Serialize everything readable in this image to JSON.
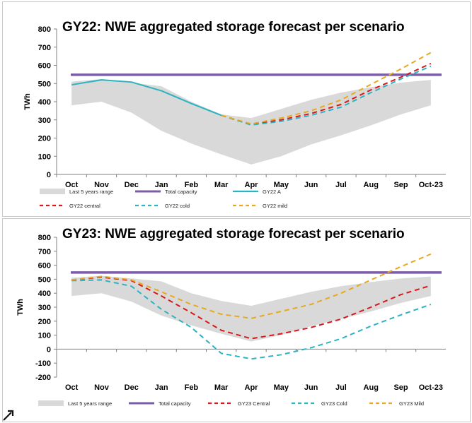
{
  "chart_data": [
    {
      "type": "line",
      "title": "GY22: NWE aggregated storage forecast per scenario",
      "ylabel": "TWh",
      "xlabel": "",
      "ylim": [
        0,
        800
      ],
      "yticks": [
        0,
        100,
        200,
        300,
        400,
        500,
        600,
        700,
        800
      ],
      "categories": [
        "Oct",
        "Nov",
        "Dec",
        "Jan",
        "Feb",
        "Mar",
        "Apr",
        "May",
        "Jun",
        "Jul",
        "Aug",
        "Sep",
        "Oct-23"
      ],
      "grid": false,
      "legend_position": "bottom",
      "band": {
        "name": "Last 5 years range",
        "color": "#d9d9d9",
        "upper": [
          510,
          525,
          505,
          485,
          400,
          330,
          310,
          360,
          410,
          450,
          480,
          505,
          520
        ],
        "lower": [
          380,
          400,
          340,
          240,
          170,
          110,
          55,
          100,
          165,
          215,
          270,
          330,
          380
        ]
      },
      "series": [
        {
          "name": "Total capacity",
          "color": "#7b5ea7",
          "style": "solid",
          "width": 3.5,
          "values": [
            548,
            548,
            548,
            548,
            548,
            548,
            548,
            548,
            548,
            548,
            548,
            548,
            548
          ]
        },
        {
          "name": "GY22 A",
          "color": "#2bb3c0",
          "style": "solid",
          "width": 2,
          "values": [
            493,
            520,
            508,
            460,
            390,
            325,
            null,
            null,
            null,
            null,
            null,
            null,
            null
          ]
        },
        {
          "name": "GY22 central",
          "color": "#d9161a",
          "style": "dashed",
          "width": 2,
          "values": [
            null,
            null,
            null,
            null,
            null,
            325,
            275,
            300,
            335,
            385,
            465,
            535,
            610
          ]
        },
        {
          "name": "GY22 cold",
          "color": "#2bb3c0",
          "style": "dashed",
          "width": 2,
          "values": [
            null,
            null,
            null,
            null,
            null,
            325,
            272,
            292,
            325,
            370,
            450,
            525,
            595
          ]
        },
        {
          "name": "GY22 mild",
          "color": "#e8a820",
          "style": "dashed",
          "width": 2,
          "values": [
            null,
            null,
            null,
            null,
            null,
            325,
            278,
            310,
            350,
            410,
            495,
            580,
            670
          ]
        }
      ]
    },
    {
      "type": "line",
      "title": "GY23: NWE aggregated storage forecast per scenario",
      "ylabel": "TWh",
      "xlabel": "",
      "ylim": [
        -200,
        800
      ],
      "yticks": [
        -200,
        -100,
        0,
        100,
        200,
        300,
        400,
        500,
        600,
        700,
        800
      ],
      "categories": [
        "Oct",
        "Nov",
        "Dec",
        "Jan",
        "Feb",
        "Mar",
        "Apr",
        "May",
        "Jun",
        "Jul",
        "Aug",
        "Sep",
        "Oct-23"
      ],
      "grid": false,
      "legend_position": "bottom",
      "band": {
        "name": "Last 5 years range",
        "color": "#d9d9d9",
        "upper": [
          510,
          525,
          505,
          485,
          400,
          345,
          310,
          360,
          410,
          450,
          480,
          505,
          520
        ],
        "lower": [
          380,
          400,
          340,
          240,
          170,
          110,
          55,
          100,
          165,
          215,
          270,
          330,
          380
        ]
      },
      "series": [
        {
          "name": "Total capacity",
          "color": "#7b5ea7",
          "style": "solid",
          "width": 3.5,
          "values": [
            548,
            548,
            548,
            548,
            548,
            548,
            548,
            548,
            548,
            548,
            548,
            548,
            548
          ]
        },
        {
          "name": "GY23 Central",
          "color": "#d9161a",
          "style": "dashed",
          "width": 2,
          "values": [
            495,
            515,
            490,
            380,
            260,
            135,
            75,
            110,
            155,
            215,
            300,
            390,
            455
          ]
        },
        {
          "name": "GY23 Cold",
          "color": "#2bb3c0",
          "style": "dashed",
          "width": 2,
          "values": [
            490,
            495,
            450,
            285,
            155,
            -30,
            -70,
            -40,
            10,
            75,
            165,
            245,
            320
          ]
        },
        {
          "name": "GY23 Mild",
          "color": "#e8a820",
          "style": "dashed",
          "width": 2,
          "values": [
            495,
            520,
            495,
            410,
            320,
            250,
            220,
            270,
            320,
            400,
            495,
            590,
            680
          ]
        }
      ]
    }
  ]
}
